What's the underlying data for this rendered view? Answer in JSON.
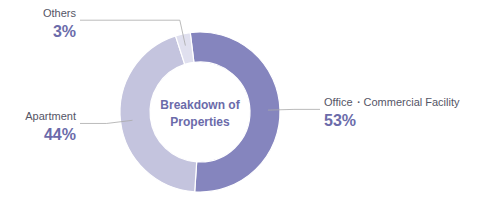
{
  "chart_data": {
    "type": "pie",
    "categories": [
      "Office・Commercial Facility",
      "Apartment",
      "Others"
    ],
    "values": [
      53,
      44,
      3
    ],
    "value_labels": [
      "53%",
      "44%",
      "3%"
    ],
    "colors": [
      "#8585be",
      "#c4c4de",
      "#e0e0ef"
    ],
    "annotations": [
      "Breakdown of",
      "Properties"
    ],
    "data_labels": true
  }
}
